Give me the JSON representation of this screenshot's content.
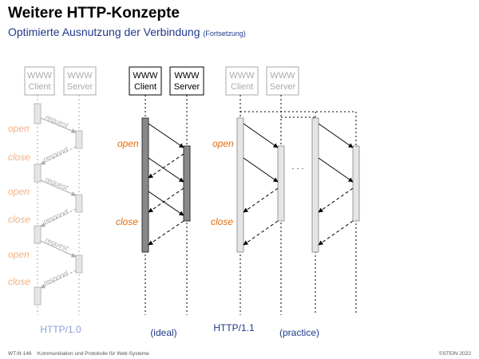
{
  "slide": {
    "title": "Weitere HTTP-Konzepte",
    "subtitle": "Optimierte Ausnutzung der Verbindung",
    "subtitle_note": "(Fortsetzung)"
  },
  "labels": {
    "www": "WWW",
    "client": "Client",
    "server": "Server",
    "open": "open",
    "close": "close",
    "request": "request",
    "respond": "respond",
    "ellipsis": "· · ·"
  },
  "captions": {
    "http10": "HTTP/1.0",
    "ideal": "(ideal)",
    "http11": "HTTP/1.1",
    "practice": "(practice)"
  },
  "footer": {
    "left_id": "WT:III-146",
    "left_text": "Kommunikation und Protokolle für Web-Systeme",
    "right": "©STEIN 2022"
  },
  "colors": {
    "accent_orange": "#e36c0a",
    "blue": "#1f3a8a",
    "gray": "#aaaaaa"
  }
}
